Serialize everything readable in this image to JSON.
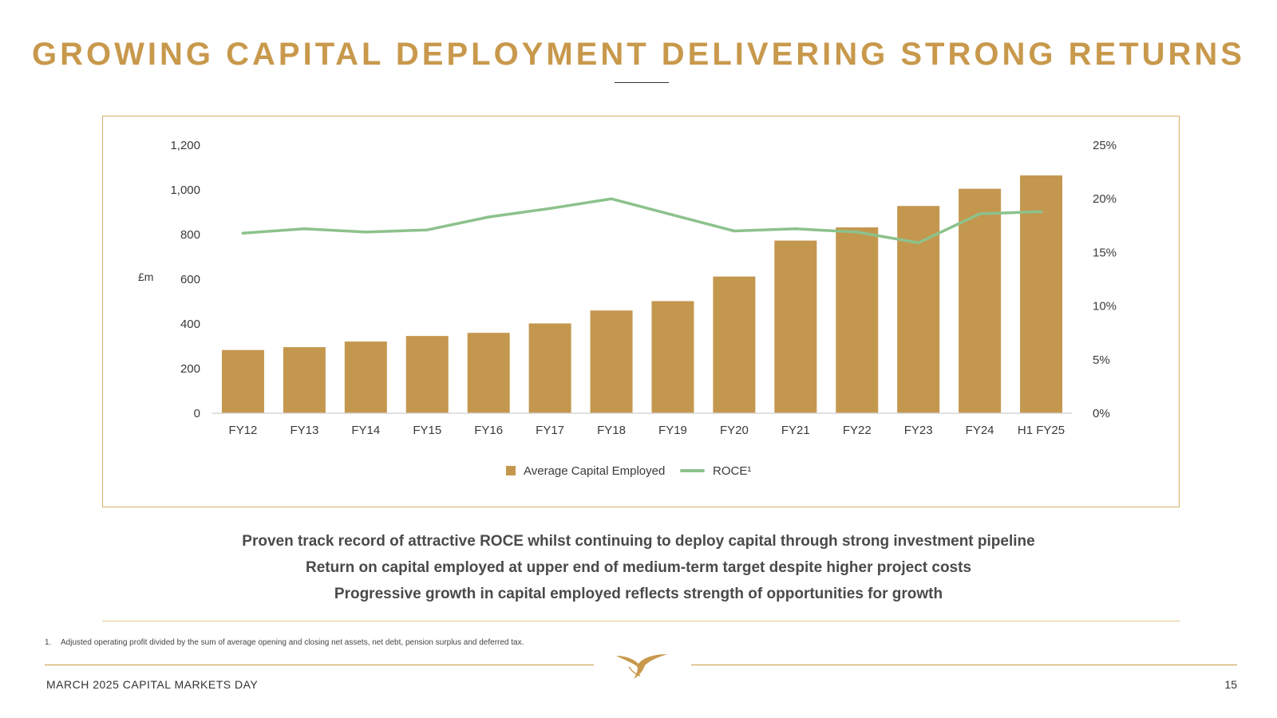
{
  "title": "GROWING CAPITAL DEPLOYMENT DELIVERING STRONG RETURNS",
  "chart_data": {
    "type": "bar",
    "categories": [
      "FY12",
      "FY13",
      "FY14",
      "FY15",
      "FY16",
      "FY17",
      "FY18",
      "FY19",
      "FY20",
      "FY21",
      "FY22",
      "FY23",
      "FY24",
      "H1 FY25"
    ],
    "series": [
      {
        "name": "Average Capital Employed",
        "type": "bar",
        "axis": "left",
        "color": "#c4974f",
        "values": [
          283,
          296,
          321,
          346,
          360,
          402,
          460,
          502,
          612,
          773,
          832,
          928,
          1005,
          1065
        ]
      },
      {
        "name": "ROCE",
        "legend_label": "ROCE¹",
        "type": "line",
        "axis": "right",
        "color": "#8cc28c",
        "values": [
          16.8,
          17.2,
          16.9,
          17.1,
          18.3,
          19.1,
          20.0,
          18.5,
          17.0,
          17.2,
          16.9,
          15.9,
          18.6,
          18.8
        ]
      }
    ],
    "ylabel": "£m",
    "ylim": [
      0,
      1200
    ],
    "yticks": [
      "0",
      "200",
      "400",
      "600",
      "800",
      "1,000",
      "1,200"
    ],
    "y2lim": [
      0,
      25
    ],
    "y2ticks": [
      "0%",
      "5%",
      "10%",
      "15%",
      "20%",
      "25%"
    ],
    "legend_position": "bottom-center"
  },
  "bullets": [
    "Proven track record of attractive ROCE whilst continuing to deploy capital through strong investment pipeline",
    "Return on capital employed at upper end of medium-term target despite higher project costs",
    "Progressive growth in capital employed reflects strength of opportunities for growth"
  ],
  "footnote": {
    "number": "1.",
    "text": "Adjusted operating profit divided by the sum of average opening and closing net assets, net debt, pension surplus and deferred tax."
  },
  "footer": {
    "event": "MARCH 2025 CAPITAL MARKETS DAY",
    "page": "15",
    "logo_icon": "bird-logo-icon"
  },
  "colors": {
    "accent": "#c8994c",
    "bar": "#c4974f",
    "line": "#8cc28c"
  }
}
